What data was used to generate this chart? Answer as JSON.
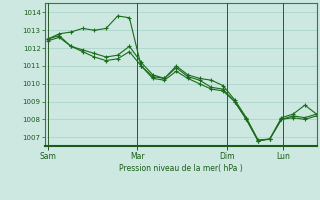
{
  "background_color": "#cce8e0",
  "grid_color": "#aed4cc",
  "line_color": "#1a6b1a",
  "marker_color": "#1a6b1a",
  "xlabel": "Pression niveau de la mer( hPa )",
  "xlabel_color": "#1a5c1a",
  "ylim": [
    1006.5,
    1014.5
  ],
  "yticks": [
    1007,
    1008,
    1009,
    1010,
    1011,
    1012,
    1013,
    1014
  ],
  "xtick_labels": [
    "Sam",
    "Mar",
    "Dim",
    "Lun"
  ],
  "xtick_positions": [
    0.0,
    0.333,
    0.667,
    0.875
  ],
  "vline_positions": [
    0.0,
    0.333,
    0.667,
    0.875
  ],
  "series": [
    [
      1012.5,
      1012.8,
      1012.9,
      1013.1,
      1013.0,
      1013.1,
      1013.8,
      1013.7,
      1011.0,
      1010.4,
      1010.3,
      1011.0,
      1010.5,
      1010.3,
      1010.2,
      1009.9,
      1009.1,
      1008.1,
      1006.85,
      1006.9,
      1008.1,
      1008.3,
      1008.8,
      1008.3
    ],
    [
      1012.5,
      1012.7,
      1012.1,
      1011.9,
      1011.7,
      1011.5,
      1011.6,
      1012.1,
      1011.2,
      1010.5,
      1010.3,
      1010.9,
      1010.4,
      1010.2,
      1009.8,
      1009.7,
      1009.0,
      1008.0,
      1006.8,
      1006.9,
      1008.0,
      1008.2,
      1008.1,
      1008.3
    ],
    [
      1012.4,
      1012.6,
      1012.1,
      1011.8,
      1011.5,
      1011.3,
      1011.4,
      1011.8,
      1011.0,
      1010.3,
      1010.2,
      1010.7,
      1010.3,
      1010.0,
      1009.7,
      1009.6,
      1009.0,
      1008.0,
      1006.8,
      1006.9,
      1008.0,
      1008.1,
      1008.0,
      1008.2
    ]
  ],
  "num_points": 24,
  "figsize": [
    3.2,
    2.0
  ],
  "dpi": 100
}
